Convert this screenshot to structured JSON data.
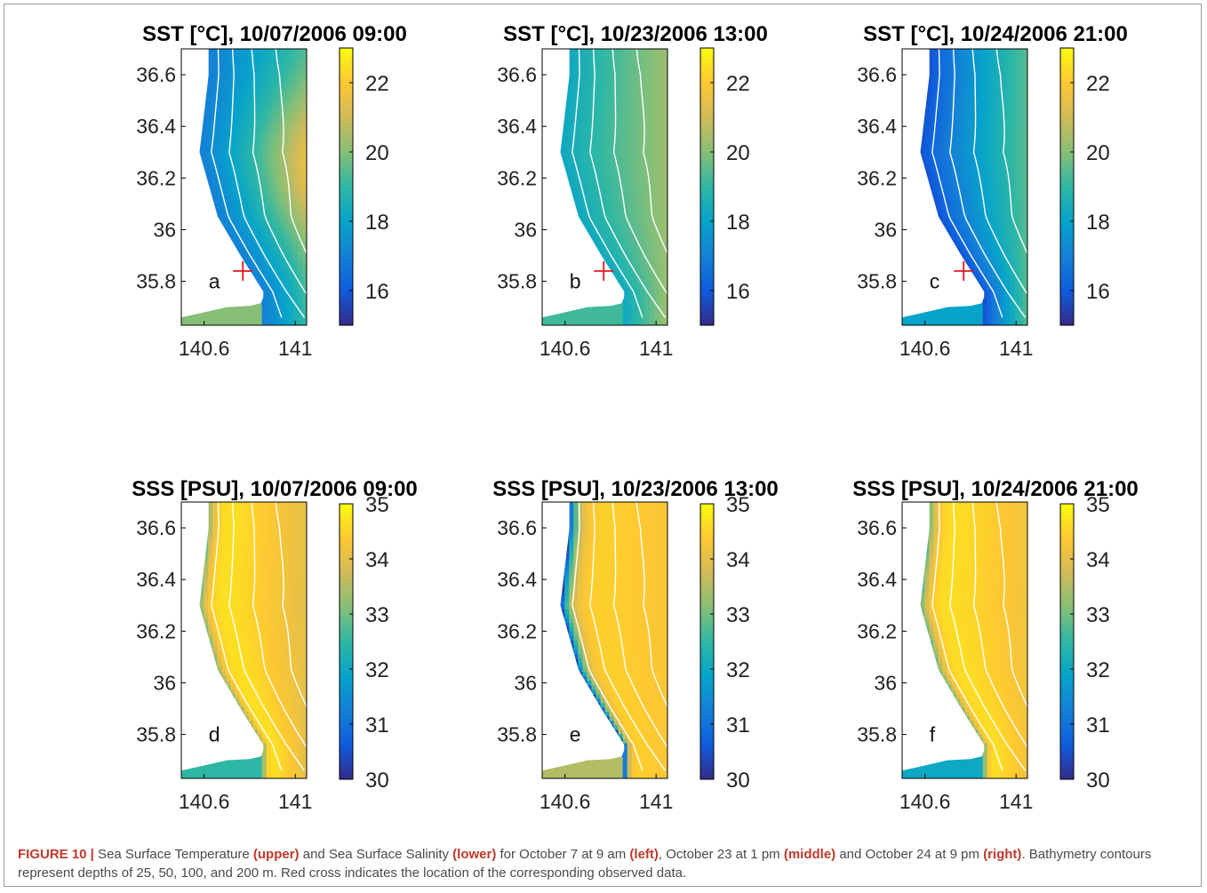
{
  "figure": {
    "caption_label": "FIGURE 10 |",
    "caption_segments": [
      {
        "text": " Sea Surface Temperature ",
        "bold": false
      },
      {
        "text": "(upper)",
        "bold": true
      },
      {
        "text": " and Sea Surface Salinity ",
        "bold": false
      },
      {
        "text": "(lower)",
        "bold": true
      },
      {
        "text": " for October 7 at 9 am ",
        "bold": false
      },
      {
        "text": "(left)",
        "bold": true
      },
      {
        "text": ", October 23 at 1 pm ",
        "bold": false
      },
      {
        "text": "(middle)",
        "bold": true
      },
      {
        "text": " and October 24 at 9 pm ",
        "bold": false
      },
      {
        "text": "(right)",
        "bold": true
      },
      {
        "text": ". Bathymetry contours represent depths of 25, 50, 100, and 200 m. Red cross indicates the location of the corresponding observed data.",
        "bold": false
      }
    ]
  },
  "colors": {
    "parula": [
      "#352a87",
      "#0f5cdd",
      "#1481d6",
      "#06a4ca",
      "#2eb7a4",
      "#87bf77",
      "#d1bb59",
      "#fec832",
      "#f9fb0e"
    ],
    "contour": "#ffffff",
    "marker": "#e8141b",
    "panel_text": "#000000"
  },
  "chart_data": [
    {
      "type": "heatmap",
      "panel": "a",
      "variable": "SST",
      "title": "SST [°C], 10/07/2006  09:00",
      "xlim": [
        140.5,
        141.05
      ],
      "ylim": [
        35.63,
        36.7
      ],
      "xticks": [
        140.6,
        141
      ],
      "xtick_labels": [
        "140.6",
        "141"
      ],
      "yticks": [
        35.8,
        36,
        36.2,
        36.4,
        36.6
      ],
      "ytick_labels": [
        "35.8",
        "36",
        "36.2",
        "36.4",
        "36.6"
      ],
      "colorbar": {
        "ticks": [
          16,
          18,
          20,
          22
        ],
        "labels": [
          "16",
          "18",
          "20",
          "22"
        ],
        "range": [
          15,
          23
        ]
      },
      "field": {
        "min": 17.0,
        "max": 21.6,
        "offshore_warm_core": true,
        "bay_value": 20.0
      },
      "contours_m": [
        25,
        50,
        100,
        200
      ],
      "observation": {
        "lon": 140.77,
        "lat": 35.84
      }
    },
    {
      "type": "heatmap",
      "panel": "b",
      "variable": "SST",
      "title": "SST [°C], 10/23/2006  13:00",
      "xlim": [
        140.5,
        141.05
      ],
      "ylim": [
        35.63,
        36.7
      ],
      "xticks": [
        140.6,
        141
      ],
      "xtick_labels": [
        "140.6",
        "141"
      ],
      "yticks": [
        35.8,
        36,
        36.2,
        36.4,
        36.6
      ],
      "ytick_labels": [
        "35.8",
        "36",
        "36.2",
        "36.4",
        "36.6"
      ],
      "colorbar": {
        "ticks": [
          16,
          18,
          20,
          22
        ],
        "labels": [
          "16",
          "18",
          "20",
          "22"
        ],
        "range": [
          15,
          23
        ]
      },
      "field": {
        "min": 18.2,
        "max": 20.3,
        "offshore_warm_core": false,
        "bay_value": 19.2
      },
      "contours_m": [
        25,
        50,
        100,
        200
      ],
      "observation": {
        "lon": 140.77,
        "lat": 35.84
      }
    },
    {
      "type": "heatmap",
      "panel": "c",
      "variable": "SST",
      "title": "SST [°C], 10/24/2006  21:00",
      "xlim": [
        140.5,
        141.05
      ],
      "ylim": [
        35.63,
        36.7
      ],
      "xticks": [
        140.6,
        141
      ],
      "xtick_labels": [
        "140.6",
        "141"
      ],
      "yticks": [
        35.8,
        36,
        36.2,
        36.4,
        36.6
      ],
      "ytick_labels": [
        "35.8",
        "36",
        "36.2",
        "36.4",
        "36.6"
      ],
      "colorbar": {
        "ticks": [
          16,
          18,
          20,
          22
        ],
        "labels": [
          "16",
          "18",
          "20",
          "22"
        ],
        "range": [
          15,
          23
        ]
      },
      "field": {
        "min": 15.8,
        "max": 19.5,
        "offshore_warm_core": false,
        "bay_value": 18.0
      },
      "contours_m": [
        25,
        50,
        100,
        200
      ],
      "observation": {
        "lon": 140.77,
        "lat": 35.84
      }
    },
    {
      "type": "heatmap",
      "panel": "d",
      "variable": "SSS",
      "title": "SSS [PSU], 10/07/2006  09:00",
      "xlim": [
        140.5,
        141.05
      ],
      "ylim": [
        35.63,
        36.7
      ],
      "xticks": [
        140.6,
        141
      ],
      "xtick_labels": [
        "140.6",
        "141"
      ],
      "yticks": [
        35.8,
        36,
        36.2,
        36.4,
        36.6
      ],
      "ytick_labels": [
        "35.8",
        "36",
        "36.2",
        "36.4",
        "36.6"
      ],
      "colorbar": {
        "ticks": [
          30,
          31,
          32,
          33,
          34,
          35
        ],
        "labels": [
          "30",
          "31",
          "32",
          "33",
          "34",
          "35"
        ],
        "range": [
          30,
          35
        ]
      },
      "field": {
        "min": 34.0,
        "max": 34.95,
        "coastal_low": 33.0,
        "bay_value": 32.5
      },
      "contours_m": [
        25,
        50,
        100,
        200
      ]
    },
    {
      "type": "heatmap",
      "panel": "e",
      "variable": "SSS",
      "title": "SSS [PSU], 10/23/2006  13:00",
      "xlim": [
        140.5,
        141.05
      ],
      "ylim": [
        35.63,
        36.7
      ],
      "xticks": [
        140.6,
        141
      ],
      "xtick_labels": [
        "140.6",
        "141"
      ],
      "yticks": [
        35.8,
        36,
        36.2,
        36.4,
        36.6
      ],
      "ytick_labels": [
        "35.8",
        "36",
        "36.2",
        "36.4",
        "36.6"
      ],
      "colorbar": {
        "ticks": [
          30,
          31,
          32,
          33,
          34,
          35
        ],
        "labels": [
          "30",
          "31",
          "32",
          "33",
          "34",
          "35"
        ],
        "range": [
          30,
          35
        ]
      },
      "field": {
        "min": 34.3,
        "max": 34.6,
        "coastal_low": 30.2,
        "bay_value": 33.5
      },
      "contours_m": [
        25,
        50,
        100,
        200
      ]
    },
    {
      "type": "heatmap",
      "panel": "f",
      "variable": "SSS",
      "title": "SSS [PSU], 10/24/2006  21:00",
      "xlim": [
        140.5,
        141.05
      ],
      "ylim": [
        35.63,
        36.7
      ],
      "xticks": [
        140.6,
        141
      ],
      "xtick_labels": [
        "140.6",
        "141"
      ],
      "yticks": [
        35.8,
        36,
        36.2,
        36.4,
        36.6
      ],
      "ytick_labels": [
        "35.8",
        "36",
        "36.2",
        "36.4",
        "36.6"
      ],
      "colorbar": {
        "ticks": [
          30,
          31,
          32,
          33,
          34,
          35
        ],
        "labels": [
          "30",
          "31",
          "32",
          "33",
          "34",
          "35"
        ],
        "range": [
          30,
          35
        ]
      },
      "field": {
        "min": 34.2,
        "max": 34.85,
        "coastal_low": 32.8,
        "bay_value": 32.0
      },
      "contours_m": [
        25,
        50,
        100,
        200
      ]
    }
  ]
}
